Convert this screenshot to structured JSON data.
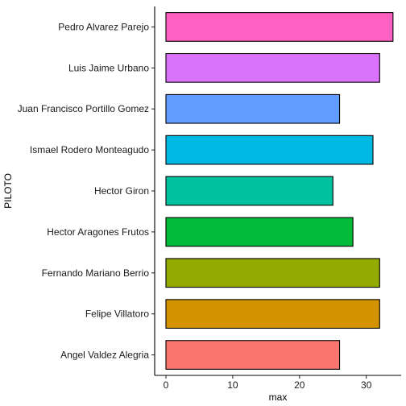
{
  "chart_data": {
    "type": "bar",
    "orientation": "horizontal",
    "categories": [
      "Angel Valdez Alegria",
      "Felipe Villatoro",
      "Fernando Mariano Berrio",
      "Hector Aragones Frutos",
      "Hector Giron",
      "Ismael Rodero Monteagudo",
      "Juan Francisco Portillo Gomez",
      "Luis Jaime Urbano",
      "Pedro Alvarez Parejo"
    ],
    "values": [
      26,
      32,
      32,
      28,
      25,
      31,
      26,
      32,
      34
    ],
    "colors": [
      "#F8766D",
      "#D39200",
      "#93AA00",
      "#00BA38",
      "#00C19F",
      "#00B9E3",
      "#619CFF",
      "#DB72FB",
      "#FF61C3"
    ],
    "xlabel": "max",
    "ylabel": "PILOTO",
    "xlim": [
      0,
      34.5
    ],
    "xticks": [
      0,
      10,
      20,
      30
    ],
    "grid": false,
    "legend": "none"
  }
}
